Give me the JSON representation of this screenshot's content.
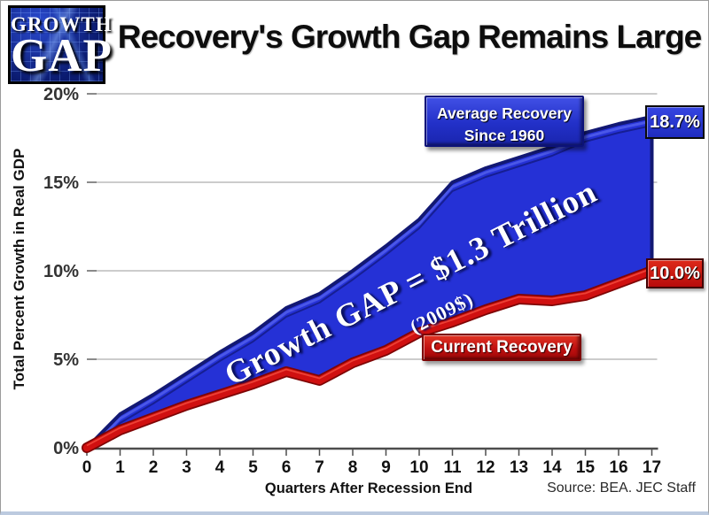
{
  "logo": {
    "line1": "GROWTH",
    "line2": "GAP"
  },
  "header": {
    "title": "Recovery's Growth Gap Remains Large"
  },
  "labels": {
    "avg_line1": "Average Recovery",
    "avg_line2": "Since 1960",
    "current": "Current Recovery",
    "source": "Source: BEA. JEC Staff"
  },
  "chart_data": {
    "type": "area",
    "title": "Recovery's Growth Gap Remains Large",
    "xlabel": "Quarters After Recession End",
    "ylabel": "Total Percent Growth in Real GDP",
    "x": [
      "0",
      "1",
      "2",
      "3",
      "4",
      "5",
      "6",
      "7",
      "8",
      "9",
      "10",
      "11",
      "12",
      "13",
      "14",
      "15",
      "16",
      "17"
    ],
    "ylim": [
      0,
      20
    ],
    "y_tick_values": [
      0,
      5,
      10,
      15,
      20
    ],
    "y_ticks": [
      "0%",
      "5%",
      "10%",
      "15%",
      "20%"
    ],
    "grid": true,
    "legend_position": "in-plot",
    "series": [
      {
        "name": "Average Recovery Since 1960",
        "color": "#2531d6",
        "edge_color": "#121873",
        "end_label": "18.7%",
        "values": [
          0.0,
          1.9,
          3.0,
          4.2,
          5.4,
          6.5,
          7.9,
          8.7,
          10.0,
          11.4,
          12.9,
          15.0,
          15.8,
          16.4,
          17.0,
          17.8,
          18.3,
          18.7
        ]
      },
      {
        "name": "Current Recovery",
        "color": "#d01010",
        "edge_color": "#7e0404",
        "end_label": "10.0%",
        "values": [
          0.0,
          1.0,
          1.7,
          2.4,
          3.0,
          3.6,
          4.3,
          3.8,
          4.8,
          5.5,
          6.5,
          7.1,
          7.8,
          8.4,
          8.3,
          8.6,
          9.3,
          10.0
        ]
      }
    ],
    "annotation": "Growth GAP = $1.3 Trillion",
    "annotation_sub": "(2009$)"
  }
}
